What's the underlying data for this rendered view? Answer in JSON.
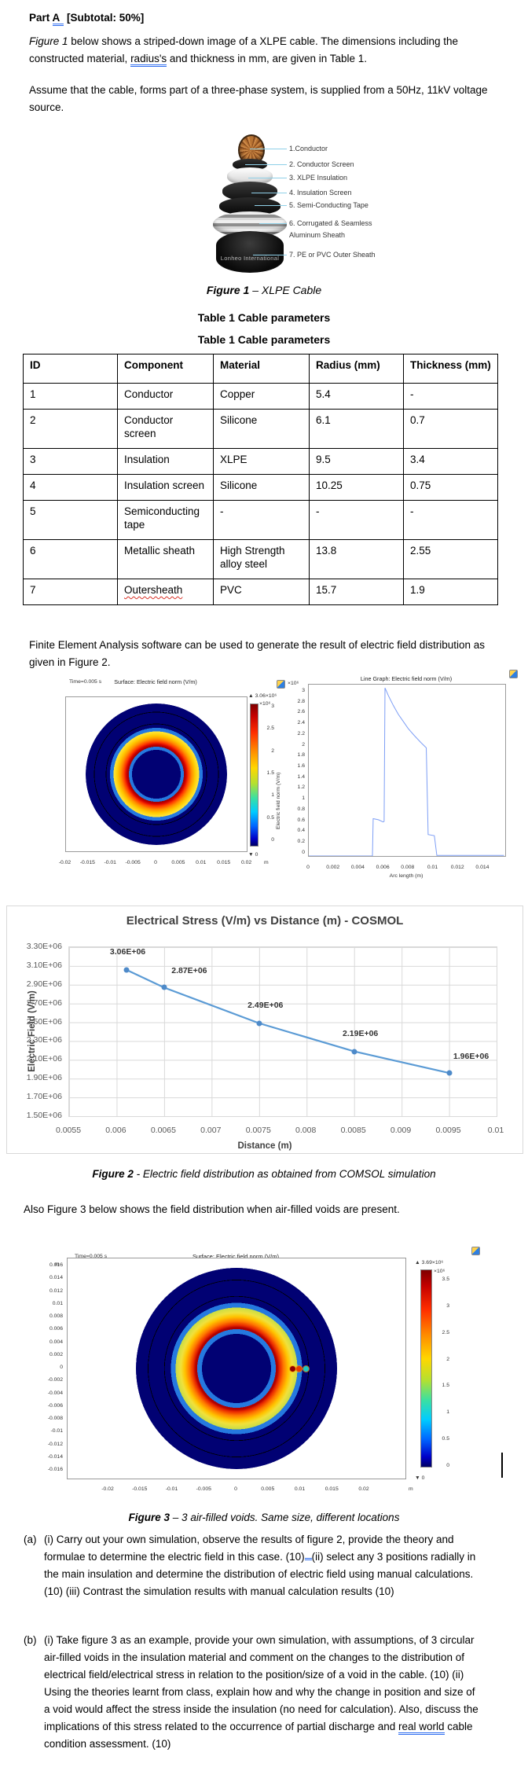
{
  "document": {
    "heading": {
      "pre": "Part ",
      "underlined": "A",
      "post": " [Subtotal: 50%]"
    },
    "para1": {
      "italic": "Figure 1",
      "a": " below shows a striped-down image of a XLPE cable. The dimensions including the constructed material, ",
      "underlined": "radius's",
      "b": " and thickness in mm, are given in Table 1."
    },
    "para2": "Assume that the cable, forms part of a three-phase system, is supplied from a 50Hz, 11kV voltage source.",
    "fea": "Finite Element Analysis software can be used to generate the result of electric field distribution as given in Figure 2.",
    "also_fig3": "Also Figure 3 below shows the field distribution when air-filled voids are present."
  },
  "figure1": {
    "labels": [
      "1.Conductor",
      "2. Conductor Screen",
      "3. XLPE Insulation",
      "4. Insulation Screen",
      "5. Semi-Conducting Tape",
      "6. Corrugated & Seamless",
      "Aluminum Sheath",
      "7. PE or PVC Outer Sheath"
    ],
    "watermark": "Lonheo International"
  },
  "captions": {
    "fig1_bold": "Figure 1",
    "fig1_rest": " – XLPE Cable",
    "fig2_bold": "Figure 2",
    "fig2_rest": " - Electric field distribution as obtained from COMSOL simulation",
    "fig3_bold": "Figure 3",
    "fig3_rest": " – 3 air-filled voids. Same size, different locations"
  },
  "table1": {
    "heading": "Table 1 Cable parameters",
    "headers": [
      "ID",
      "Component",
      "Material",
      "Radius (mm)",
      "Thickness (mm)"
    ],
    "rows": [
      [
        "1",
        "Conductor",
        "Copper",
        "5.4",
        "-"
      ],
      [
        "2",
        "Conductor screen",
        "Silicone",
        "6.1",
        "0.7"
      ],
      [
        "3",
        "Insulation",
        "XLPE",
        "9.5",
        "3.4"
      ],
      [
        "4",
        "Insulation screen",
        "Silicone",
        "10.25",
        "0.75"
      ],
      [
        "5",
        "Semiconducting tape",
        "-",
        "-",
        "-"
      ],
      [
        "6",
        "Metallic sheath",
        "High Strength alloy steel",
        "13.8",
        "2.55"
      ],
      [
        "7",
        "Outersheath",
        "PVC",
        "15.7",
        "1.9"
      ]
    ]
  },
  "questions": {
    "a_label": "(a)",
    "a_text1": "(i) Carry out your own simulation, observe the results of figure 2, provide the theory and formulae to determine the electric field in this case. (10)",
    "a_text2": "(ii) select any 3 positions radially in the main insulation and determine the distribution of electric field using manual calculations. (10) (iii) Contrast the simulation results with manual calculation results (10)",
    "b_label": "(b)",
    "b_text1": "(i) Take figure 3 as an example, provide your own simulation, with assumptions, of 3 circular air-filled voids in the insulation material and comment on the changes to the distribution of electrical field/electrical stress in relation to the position/size of a void in the cable. (10) (ii) Using the theories learnt from class, explain how and why the change in position and size of a void would affect the stress inside the insulation (no need for calculation). Also, discuss the implications of this stress related to the occurrence of partial discharge and ",
    "b_underlined": "real world",
    "b_text2": " cable condition assessment. (10)"
  },
  "chart_data": [
    {
      "id": "fig2_surface",
      "type": "heatmap",
      "time_label": "Time=0.005 s",
      "title": "Surface: Electric field norm (V/m)",
      "x_ticks": [
        -0.02,
        -0.015,
        -0.01,
        -0.005,
        0,
        0.005,
        0.01,
        0.015,
        0.02
      ],
      "x_unit": "m",
      "colorbar_max_label": "▲ 3.06×10⁶",
      "colorbar_scale": "×10⁶",
      "colorbar_ticks": [
        3,
        2.5,
        2,
        1.5,
        1,
        0.5,
        0
      ],
      "colorbar_min_label": "▼ 0",
      "max_field_vm": 3060000,
      "layer_radii_m": {
        "conductor": 0.0054,
        "conductor_screen": 0.0061,
        "insulation": 0.0095,
        "insulation_screen": 0.01025,
        "sheath_inner": 0.01125,
        "sheath_outer": 0.0138,
        "outer_sheath": 0.0157
      }
    },
    {
      "id": "fig2_line",
      "type": "line",
      "title": "Line Graph: Electric field norm (V/m)",
      "ylabel": "Electric field norm (V/m)",
      "y_scale": "×10⁶",
      "xlabel": "Arc length (m)",
      "x_range": [
        0,
        0.0158
      ],
      "y_range": [
        0,
        3.12
      ],
      "y_ticks": [
        3,
        2.8,
        2.6,
        2.4,
        2.2,
        2,
        1.8,
        1.6,
        1.4,
        1.2,
        1,
        0.8,
        0.6,
        0.4,
        0.2,
        0
      ],
      "x_ticks": [
        0,
        0.002,
        0.004,
        0.006,
        0.008,
        0.01,
        0.012,
        0.014
      ],
      "points": [
        [
          0,
          0
        ],
        [
          0.00512,
          0
        ],
        [
          0.00518,
          0.68
        ],
        [
          0.0056,
          0.66
        ],
        [
          0.00598,
          0.62
        ],
        [
          0.00606,
          0.63
        ],
        [
          0.00613,
          3.06
        ],
        [
          0.0064,
          2.92
        ],
        [
          0.0068,
          2.74
        ],
        [
          0.0072,
          2.58
        ],
        [
          0.0076,
          2.45
        ],
        [
          0.008,
          2.32
        ],
        [
          0.0085,
          2.19
        ],
        [
          0.009,
          2.07
        ],
        [
          0.00945,
          1.97
        ],
        [
          0.0096,
          0.39
        ],
        [
          0.0101,
          0.37
        ],
        [
          0.0103,
          0.01
        ],
        [
          0.0157,
          0.01
        ]
      ]
    },
    {
      "id": "excel_line",
      "type": "line",
      "title": "Electrical Stress (V/m) vs Distance (m) - COSMOL",
      "ylabel": "Electric Field (V/m)",
      "xlabel": "Distance (m)",
      "y_tick_labels": [
        "3.30E+06",
        "3.10E+06",
        "2.90E+06",
        "2.70E+06",
        "2.50E+06",
        "2.30E+06",
        "2.10E+06",
        "1.90E+06",
        "1.70E+06",
        "1.50E+06"
      ],
      "x_ticks": [
        0.0055,
        0.006,
        0.0065,
        0.007,
        0.0075,
        0.008,
        0.0085,
        0.009,
        0.0095,
        0.01
      ],
      "x_range": [
        0.0055,
        0.01
      ],
      "y_range": [
        1500000,
        3300000
      ],
      "points": [
        [
          0.0061,
          3060000
        ],
        [
          0.0065,
          2870000
        ],
        [
          0.0075,
          2490000
        ],
        [
          0.0085,
          2190000
        ],
        [
          0.0095,
          1960000
        ]
      ],
      "point_labels": [
        "3.06E+06",
        "2.87E+06",
        "2.49E+06",
        "2.19E+06",
        "1.96E+06"
      ],
      "line_color": "#5b9bd5"
    },
    {
      "id": "fig3_surface",
      "type": "heatmap",
      "time_label": "Time=0.005 s",
      "title": "Surface: Electric field norm (V/m)",
      "y_unit": "m",
      "y_ticks": [
        0.016,
        0.014,
        0.012,
        0.01,
        0.008,
        0.006,
        0.004,
        0.002,
        0,
        -0.002,
        -0.004,
        -0.006,
        -0.008,
        -0.01,
        -0.012,
        -0.014,
        -0.016
      ],
      "x_ticks": [
        -0.02,
        -0.015,
        -0.01,
        -0.005,
        0,
        0.005,
        0.01,
        0.015,
        0.02
      ],
      "x_unit": "m",
      "colorbar_max_label": "▲ 3.69×10⁶",
      "colorbar_scale": "×10⁶",
      "colorbar_ticks": [
        3.5,
        3,
        2.5,
        2,
        1.5,
        1,
        0.5,
        0
      ],
      "colorbar_min_label": "▼ 0",
      "max_field_vm": 3690000,
      "voids": [
        {
          "x_m": 0.0088,
          "y_m": 0,
          "color": "#8f0000"
        },
        {
          "x_m": 0.0098,
          "y_m": 0,
          "color": "#e63c00"
        },
        {
          "x_m": 0.0108,
          "y_m": 0,
          "color": "#18c8c8"
        }
      ]
    }
  ]
}
